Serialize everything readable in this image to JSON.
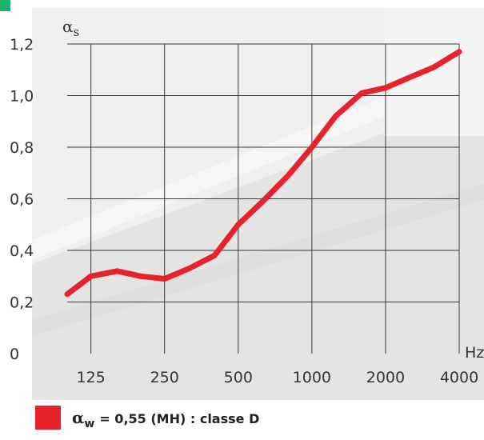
{
  "chart_data": {
    "type": "line",
    "ylabel_symbol": "α",
    "ylabel_subscript": "s",
    "xlabel": "Hz",
    "ylim": [
      0,
      1.2
    ],
    "yticks": [
      0,
      0.2,
      0.4,
      0.6,
      0.8,
      1.0,
      1.2
    ],
    "ytick_labels": [
      "0",
      "0,2",
      "0,4",
      "0,6",
      "0,8",
      "1,0",
      "1,2"
    ],
    "xticks": [
      125,
      250,
      500,
      1000,
      2000,
      4000
    ],
    "xtick_labels": [
      "125",
      "250",
      "500",
      "1000",
      "2000",
      "4000"
    ],
    "x_scale": "log",
    "grid": true,
    "series": [
      {
        "color": "#e8222b",
        "x": [
          100,
          125,
          160,
          200,
          250,
          315,
          400,
          500,
          630,
          800,
          1000,
          1250,
          1600,
          2000,
          2500,
          3150,
          4000
        ],
        "values": [
          0.23,
          0.3,
          0.32,
          0.3,
          0.29,
          0.33,
          0.38,
          0.5,
          0.59,
          0.69,
          0.8,
          0.92,
          1.01,
          1.03,
          1.07,
          1.11,
          1.17
        ]
      }
    ],
    "legend": {
      "position": "bottom-left",
      "symbol": "α",
      "subscript": "w",
      "text": "= 0,55 (MH) : classe D"
    }
  }
}
